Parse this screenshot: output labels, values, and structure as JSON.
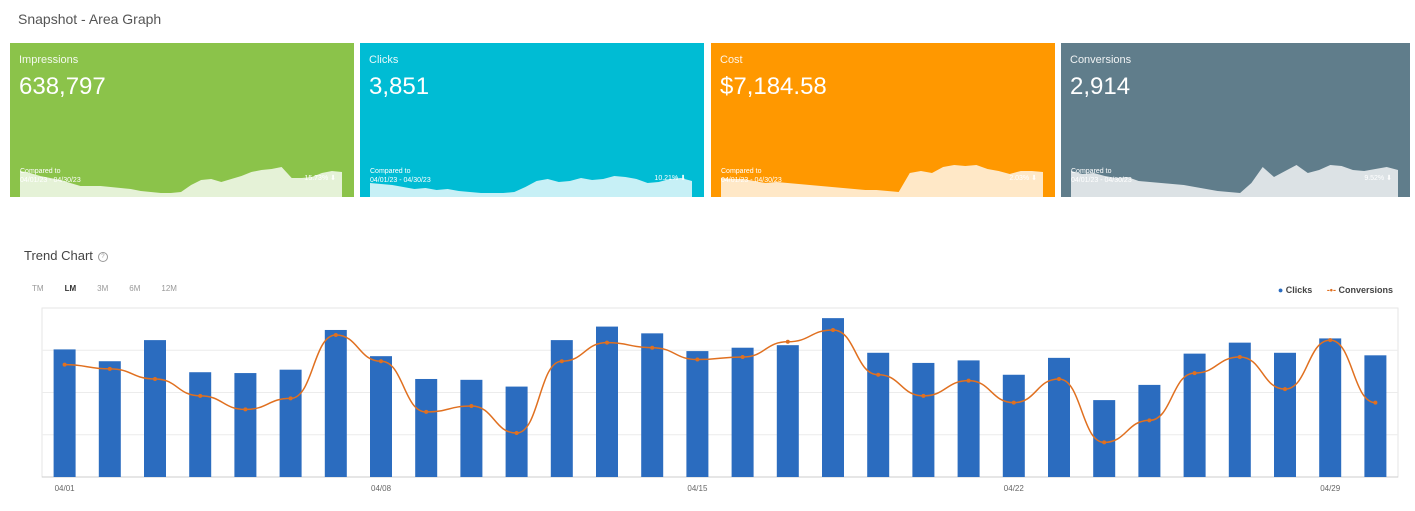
{
  "header": {
    "title": "Snapshot - Area Graph"
  },
  "cards": [
    {
      "label": "Impressions",
      "value": "638,797",
      "compared_label": "Compared to",
      "compared_range": "04/01/23 - 04/30/23",
      "change": "15.73%",
      "direction": "down",
      "color": "#8bc34a",
      "spark": [
        32,
        30,
        27,
        25,
        23,
        20,
        17,
        17,
        17,
        16,
        15,
        14,
        12,
        11,
        10,
        10,
        11,
        18,
        23,
        24,
        21,
        24,
        27,
        31,
        33,
        34,
        36,
        25,
        25,
        26,
        30,
        32,
        31
      ]
    },
    {
      "label": "Clicks",
      "value": "3,851",
      "compared_label": "Compared to",
      "compared_range": "04/01/23 - 04/30/23",
      "change": "10.21%",
      "direction": "down",
      "color": "#00bcd4",
      "spark": [
        20,
        19,
        18,
        16,
        14,
        15,
        13,
        14,
        12,
        11,
        10,
        10,
        10,
        11,
        16,
        22,
        24,
        21,
        22,
        25,
        23,
        24,
        27,
        26,
        24,
        20,
        21,
        24,
        25,
        22
      ]
    },
    {
      "label": "Cost",
      "value": "$7,184.58",
      "compared_label": "Compared to",
      "compared_range": "04/01/23 - 04/30/23",
      "change": "2.03%",
      "direction": "down",
      "color": "#ff9800",
      "spark": [
        25,
        24,
        24,
        22,
        20,
        21,
        20,
        19,
        18,
        17,
        16,
        15,
        14,
        13,
        13,
        12,
        11,
        30,
        32,
        30,
        36,
        38,
        37,
        38,
        34,
        32,
        29,
        32,
        32,
        31
      ]
    },
    {
      "label": "Conversions",
      "value": "2,914",
      "compared_label": "Compared to",
      "compared_range": "04/01/23 - 04/30/23",
      "change": "9.52%",
      "direction": "down",
      "color": "#607d8b",
      "spark": [
        32,
        29,
        30,
        27,
        25,
        26,
        22,
        21,
        20,
        19,
        18,
        16,
        14,
        12,
        11,
        10,
        20,
        36,
        26,
        32,
        38,
        30,
        33,
        38,
        37,
        33,
        32,
        34,
        36,
        33
      ]
    }
  ],
  "trend": {
    "title": "Trend Chart",
    "tabs": [
      "TM",
      "LM",
      "3M",
      "6M",
      "12M"
    ],
    "active_tab": "LM"
  },
  "chart_data": {
    "type": "bar+line",
    "categories": [
      "04/01",
      "04/02",
      "04/03",
      "04/04",
      "04/05",
      "04/06",
      "04/07",
      "04/08",
      "04/09",
      "04/10",
      "04/11",
      "04/12",
      "04/13",
      "04/14",
      "04/15",
      "04/16",
      "04/17",
      "04/18",
      "04/19",
      "04/20",
      "04/21",
      "04/22",
      "04/23",
      "04/24",
      "04/25",
      "04/26",
      "04/27",
      "04/28",
      "04/29",
      "04/30"
    ],
    "tick_labels": [
      "04/01",
      "04/08",
      "04/15",
      "04/22",
      "04/29"
    ],
    "series": [
      {
        "name": "Clicks",
        "type": "bar",
        "color": "#2b6cbf",
        "values": [
          151,
          137,
          162,
          124,
          123,
          127,
          174,
          143,
          116,
          115,
          107,
          162,
          178,
          170,
          149,
          153,
          156,
          188,
          147,
          135,
          138,
          121,
          141,
          91,
          109,
          146,
          159,
          147,
          164,
          144
        ]
      },
      {
        "name": "Conversions",
        "type": "line",
        "color": "#e07020",
        "values": [
          133,
          128,
          116,
          96,
          80,
          93,
          168,
          137,
          77,
          84,
          52,
          137,
          159,
          153,
          139,
          142,
          160,
          174,
          121,
          96,
          114,
          88,
          116,
          41,
          67,
          123,
          142,
          104,
          162,
          88
        ]
      }
    ],
    "ylim": [
      0,
      200
    ],
    "grid": true,
    "legend": "top-right"
  }
}
